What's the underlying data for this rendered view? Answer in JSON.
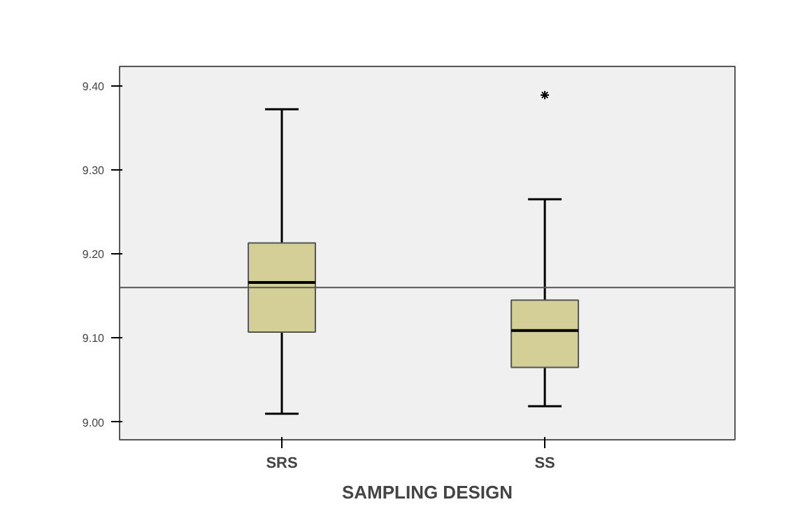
{
  "chart_data": {
    "type": "box",
    "xlabel": "SAMPLING DESIGN",
    "categories": [
      "SRS",
      "SS"
    ],
    "color": "#d3cf97",
    "boxes": [
      {
        "low": 9.01,
        "q1": 9.107,
        "median": 9.166,
        "q3": 9.213,
        "high": 9.372
      },
      {
        "low": 9.019,
        "q1": 9.065,
        "median": 9.109,
        "q3": 9.145,
        "high": 9.265,
        "outliers": [
          9.389
        ]
      }
    ],
    "ylim": [
      8.979,
      9.423
    ],
    "yticks": [
      {
        "value": 9.0,
        "label": "9.00"
      },
      {
        "value": 9.1,
        "label": "9.10"
      },
      {
        "value": 9.2,
        "label": "9.20"
      },
      {
        "value": 9.3,
        "label": "9.30"
      },
      {
        "value": 9.4,
        "label": "9.40"
      }
    ],
    "ref_lines": [
      {
        "axis": "y",
        "value": 9.16,
        "label": null,
        "color": "#555555"
      }
    ],
    "marker": "star",
    "grid": false
  }
}
